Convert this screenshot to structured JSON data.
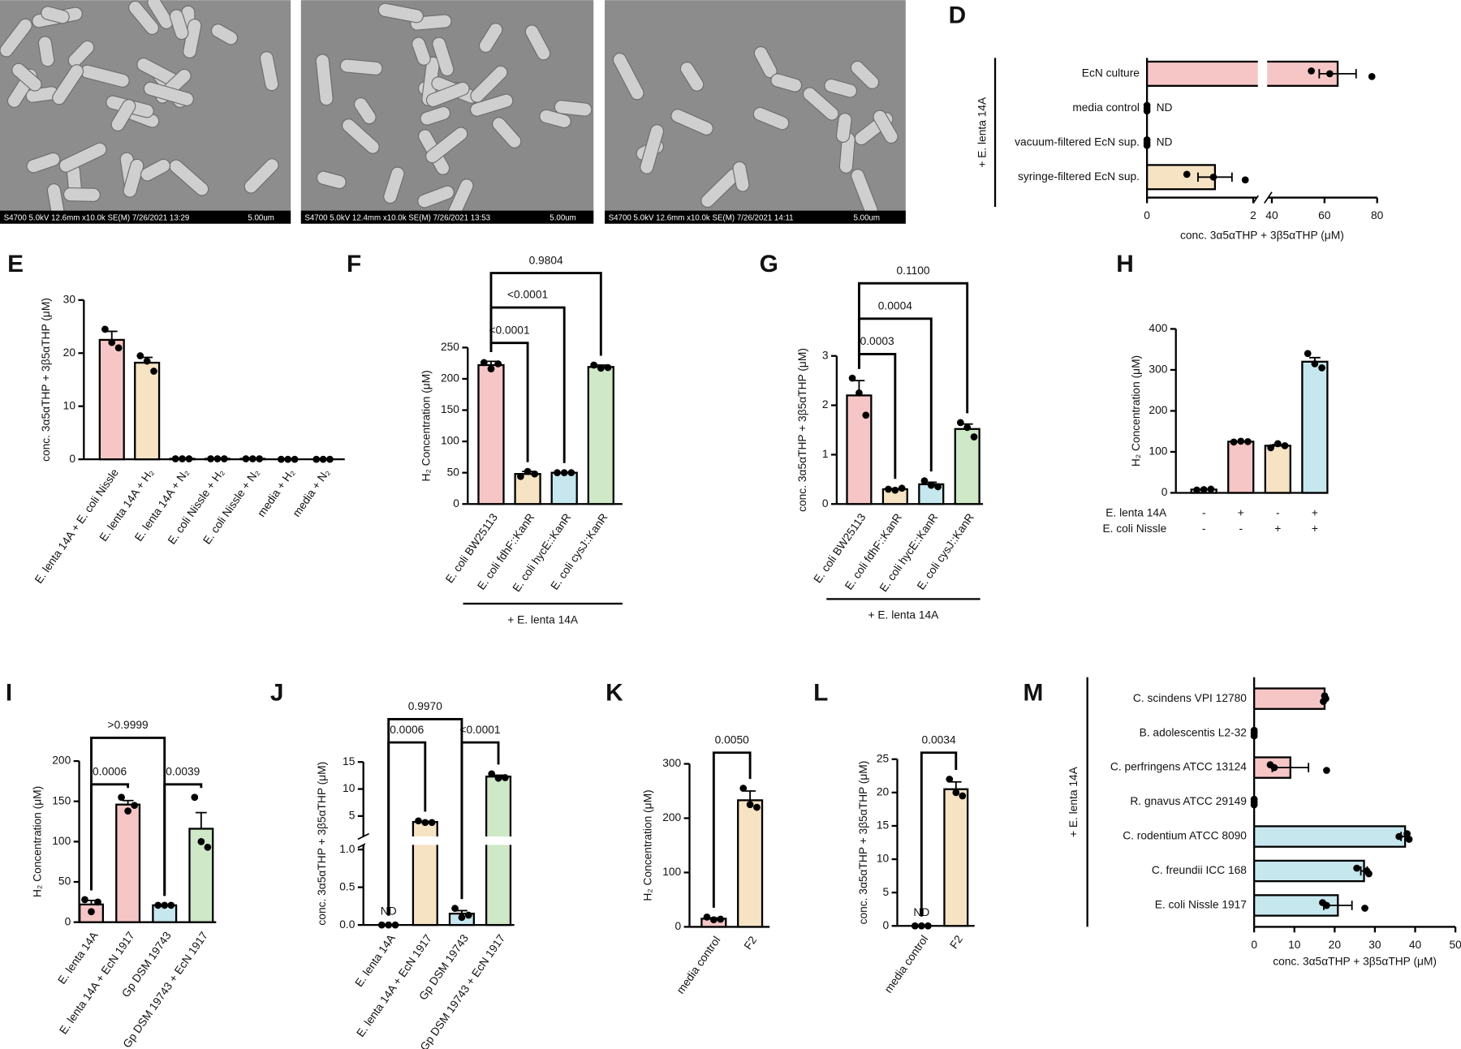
{
  "images": [
    {
      "caption": "S4700 5.0kV 12.6mm x10.0k SE(M) 7/26/2021 13:29",
      "scale": "5.00um"
    },
    {
      "caption": "S4700 5.0kV 12.4mm x10.0k SE(M) 7/26/2021 13:53",
      "scale": "5.00um"
    },
    {
      "caption": "S4700 5.0kV 12.6mm x10.0k SE(M) 7/26/2021 14:11",
      "scale": "5.00um"
    }
  ],
  "chart_data": [
    {
      "panel": "D",
      "type": "bar",
      "orientation": "horizontal",
      "categories": [
        "EcN culture",
        "media control",
        "vacuum-filtered EcN sup.",
        "syringe-filtered EcN sup."
      ],
      "values": [
        65,
        0,
        0,
        1.28
      ],
      "errors": [
        7,
        0,
        0,
        0.32
      ],
      "points": [
        [
          55,
          62,
          78
        ],
        [
          0,
          0,
          0
        ],
        [
          0,
          0,
          0
        ],
        [
          0.75,
          1.25,
          1.85
        ]
      ],
      "value_labels": [
        null,
        "ND",
        "ND",
        null
      ],
      "colors": [
        "#f6c6c6",
        "#ffffff",
        "#ffffff",
        "#f6e3c4"
      ],
      "xlim": [
        0,
        80
      ],
      "xbreak": [
        2,
        40
      ],
      "xticks": [
        0,
        2,
        40,
        60,
        80
      ],
      "xlabel": "conc. 3α5αTHP + 3β5αTHP (μM)",
      "group_label": "+ E. lenta 14A"
    },
    {
      "panel": "E",
      "type": "bar",
      "categories": [
        "E. lenta 14A + E. coli Nissle",
        "E. lenta 14A + H₂",
        "E. lenta 14A + N₂",
        "E. coli Nissle + H₂",
        "E. coli Nissle + N₂",
        "media + H₂",
        "media + N₂"
      ],
      "values": [
        22.5,
        18.2,
        0.1,
        0.1,
        0.1,
        0,
        0
      ],
      "errors": [
        1.6,
        1,
        0,
        0,
        0,
        0,
        0
      ],
      "points": [
        [
          24.5,
          22,
          21
        ],
        [
          19.5,
          18.5,
          16.6
        ],
        [
          0.1,
          0.1,
          0.1
        ],
        [
          0.1,
          0.1,
          0.1
        ],
        [
          0.1,
          0.1,
          0.1
        ],
        [
          0,
          0,
          0
        ],
        [
          0,
          0,
          0
        ]
      ],
      "colors": [
        "#f6c6c6",
        "#f6e3c4",
        "#ffffff",
        "#ffffff",
        "#ffffff",
        "#ffffff",
        "#ffffff"
      ],
      "ylim": [
        0,
        30
      ],
      "yticks": [
        0,
        10,
        20,
        30
      ],
      "ylabel": "conc. 3α5αTHP + 3β5αTHP (μM)"
    },
    {
      "panel": "F",
      "type": "bar",
      "categories": [
        "E. coli BW25113",
        "E. coli fdhF::KanR",
        "E. coli hycE::KanR",
        "E. coli cysJ::KanR"
      ],
      "values": [
        222,
        48,
        50,
        219
      ],
      "errors": [
        6,
        4,
        0.5,
        3
      ],
      "points": [
        [
          226,
          216,
          224
        ],
        [
          44,
          52,
          48
        ],
        [
          50,
          50,
          50
        ],
        [
          222,
          217,
          218
        ]
      ],
      "colors": [
        "#f6c6c6",
        "#f6e3c4",
        "#c7e7ef",
        "#cfe8c8"
      ],
      "ylim": [
        0,
        250
      ],
      "yticks": [
        0,
        50,
        100,
        150,
        200,
        250
      ],
      "ylabel": "H₂ Concentration (μM)",
      "group_label": "+ E. lenta 14A",
      "comparisons": [
        {
          "pair": [
            0,
            1
          ],
          "label": "<0.0001"
        },
        {
          "pair": [
            0,
            2
          ],
          "label": "<0.0001"
        },
        {
          "pair": [
            0,
            3
          ],
          "label": "0.9804"
        }
      ]
    },
    {
      "panel": "G",
      "type": "bar",
      "categories": [
        "E. coli BW25113",
        "E. coli fdhF::KanR",
        "E. coli hycE::KanR",
        "E. coli cysJ::KanR"
      ],
      "values": [
        2.2,
        0.3,
        0.4,
        1.52
      ],
      "errors": [
        0.3,
        0.01,
        0.04,
        0.1
      ],
      "points": [
        [
          2.55,
          2.25,
          1.8
        ],
        [
          0.3,
          0.28,
          0.32
        ],
        [
          0.47,
          0.38,
          0.35
        ],
        [
          1.65,
          1.55,
          1.36
        ]
      ],
      "colors": [
        "#f6c6c6",
        "#f6e3c4",
        "#c7e7ef",
        "#cfe8c8"
      ],
      "ylim": [
        0,
        3
      ],
      "yticks": [
        0,
        1,
        2,
        3
      ],
      "ylabel": "conc. 3α5αTHP + 3β5αTHP (μM)",
      "group_label": "+ E. lenta 14A",
      "comparisons": [
        {
          "pair": [
            0,
            1
          ],
          "label": "0.0003"
        },
        {
          "pair": [
            0,
            2
          ],
          "label": "0.0004"
        },
        {
          "pair": [
            0,
            3
          ],
          "label": "0.1100"
        }
      ]
    },
    {
      "panel": "H",
      "type": "bar",
      "values": [
        8,
        125,
        115,
        320
      ],
      "errors": [
        0.6,
        0.6,
        3,
        10
      ],
      "points": [
        [
          7,
          8,
          9
        ],
        [
          124,
          126,
          125
        ],
        [
          110,
          120,
          115
        ],
        [
          340,
          315,
          305
        ]
      ],
      "colors": [
        "#ffffff",
        "#f6c6c6",
        "#f6e3c4",
        "#c7e7ef"
      ],
      "ylim": [
        0,
        400
      ],
      "yticks": [
        0,
        100,
        200,
        300,
        400
      ],
      "ylabel": "H₂ Concentration (μM)",
      "condition_rows": [
        {
          "name": "E. lenta 14A",
          "marks": [
            "-",
            "+",
            "-",
            "+"
          ]
        },
        {
          "name": "E. coli Nissle",
          "marks": [
            "-",
            "-",
            "+",
            "+"
          ]
        }
      ]
    },
    {
      "panel": "I",
      "type": "bar",
      "categories": [
        "E. lenta 14A",
        "E. lenta 14A + EcN 1917",
        "Gp DSM 19743",
        "Gp DSM 19743 + EcN 1917"
      ],
      "values": [
        22,
        146,
        21,
        116
      ],
      "errors": [
        5,
        5,
        0.1,
        20
      ],
      "points": [
        [
          28,
          13,
          25
        ],
        [
          155,
          138,
          145
        ],
        [
          21,
          21,
          21
        ],
        [
          155,
          100,
          93
        ]
      ],
      "colors": [
        "#f6c6c6",
        "#f6c6c6",
        "#c7e7ef",
        "#cfe8c8"
      ],
      "ylim": [
        0,
        200
      ],
      "yticks": [
        0,
        50,
        100,
        150,
        200
      ],
      "ylabel": "H₂ Concentration (μM)",
      "comparisons": [
        {
          "pair": [
            0,
            1
          ],
          "label": "0.0006"
        },
        {
          "pair": [
            2,
            3
          ],
          "label": "0.0039"
        },
        {
          "pair": [
            0,
            2
          ],
          "label": ">0.9999"
        }
      ]
    },
    {
      "panel": "J",
      "type": "bar",
      "categories": [
        "E. lenta 14A",
        "E. lenta 14A + EcN 1917",
        "Gp DSM 19743",
        "Gp DSM 19743 + EcN 1917"
      ],
      "values": [
        0,
        3.9,
        0.15,
        12.3
      ],
      "errors": [
        0,
        0.1,
        0.04,
        0.25
      ],
      "points": [
        [
          0,
          0,
          0
        ],
        [
          4.1,
          3.8,
          3.8
        ],
        [
          0.22,
          0.1,
          0.13
        ],
        [
          12.8,
          12,
          12.1
        ]
      ],
      "value_labels": [
        "ND",
        null,
        null,
        null
      ],
      "colors": [
        "#f6c6c6",
        "#f6e3c4",
        "#c7e7ef",
        "#cfe8c8"
      ],
      "ylim": [
        0,
        15
      ],
      "ybreak": [
        1,
        5
      ],
      "yticks": [
        {
          "value": 0,
          "label": "0.0"
        },
        0.5,
        {
          "value": 1,
          "label": "1.0"
        },
        5,
        10,
        15
      ],
      "ylabel": "conc. 3α5αTHP + 3β5αTHP (μM)",
      "comparisons": [
        {
          "pair": [
            0,
            1
          ],
          "label": "0.0006"
        },
        {
          "pair": [
            2,
            3
          ],
          "label": "<0.0001"
        },
        {
          "pair": [
            0,
            2
          ],
          "label": "0.9970"
        }
      ]
    },
    {
      "panel": "K",
      "type": "bar",
      "categories": [
        "media control",
        "F2"
      ],
      "values": [
        15,
        233
      ],
      "errors": [
        1.5,
        17
      ],
      "points": [
        [
          18,
          13,
          14
        ],
        [
          255,
          225,
          220
        ]
      ],
      "colors": [
        "#f6c6c6",
        "#f6e3c4"
      ],
      "ylim": [
        0,
        300
      ],
      "yticks": [
        0,
        100,
        200,
        300
      ],
      "ylabel": "H₂ Concentration (μM)",
      "comparisons": [
        {
          "pair": [
            0,
            1
          ],
          "label": "0.0050"
        }
      ]
    },
    {
      "panel": "L",
      "type": "bar",
      "categories": [
        "media control",
        "F2"
      ],
      "values": [
        0,
        20.5
      ],
      "errors": [
        0,
        1.1
      ],
      "points": [
        [
          0,
          0,
          0
        ],
        [
          22,
          20,
          19.5
        ]
      ],
      "value_labels": [
        "ND",
        null
      ],
      "colors": [
        "#ffffff",
        "#f6e3c4"
      ],
      "ylim": [
        0,
        25
      ],
      "yticks": [
        0,
        5,
        10,
        15,
        20,
        25
      ],
      "ylabel": "conc. 3α5αTHP + 3β5αTHP (μM)",
      "comparisons": [
        {
          "pair": [
            0,
            1
          ],
          "label": "0.0034"
        }
      ]
    },
    {
      "panel": "M",
      "type": "bar",
      "orientation": "horizontal",
      "categories": [
        "C. scindens VPI 12780",
        "B. adolescentis L2-32",
        "C. perfringens ATCC 13124",
        "R. gnavus ATCC 29149",
        "C. rodentium ATCC 8090",
        "C. freundii ICC 168",
        "E. coli Nissle 1917"
      ],
      "values": [
        17.5,
        0,
        9,
        0,
        37.5,
        27.3,
        20.8
      ],
      "errors": [
        0.2,
        0,
        4.5,
        0,
        1,
        0.8,
        3.5
      ],
      "points": [
        [
          17.5,
          17.8,
          17.2
        ],
        [
          0,
          0,
          0
        ],
        [
          4,
          5,
          18
        ],
        [
          0,
          0,
          0
        ],
        [
          38,
          36,
          38.5
        ],
        [
          25.5,
          28,
          28.5
        ],
        [
          17,
          18,
          27.5
        ]
      ],
      "colors": [
        "#f6c6c6",
        "#ffffff",
        "#f6c6c6",
        "#ffffff",
        "#c7e7ef",
        "#c7e7ef",
        "#c7e7ef"
      ],
      "xlim": [
        0,
        50
      ],
      "xticks": [
        0,
        10,
        20,
        30,
        40,
        50
      ],
      "xlabel": "conc. 3α5αTHP + 3β5αTHP (μM)",
      "group_label": "+ E. lenta 14A"
    }
  ]
}
